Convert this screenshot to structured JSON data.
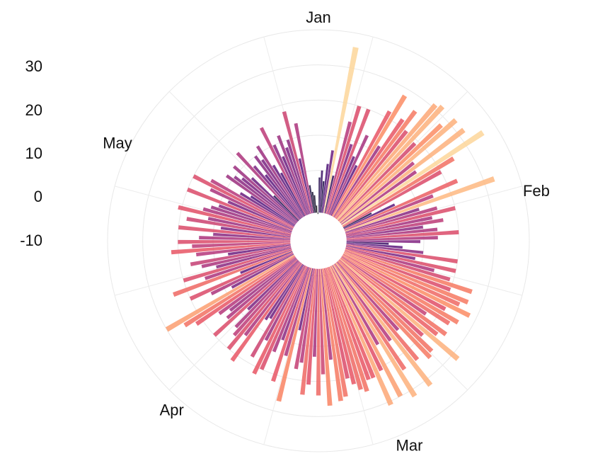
{
  "chart_data": {
    "type": "bar",
    "subtype": "radial-bar",
    "title": "",
    "xlabel": "",
    "ylabel": "",
    "ylim": [
      -20,
      40
    ],
    "grid": true,
    "legend": "none",
    "colormap": "magma",
    "color_domain": [
      -10,
      40
    ],
    "y_ticks": [
      {
        "value": 30,
        "label": "30"
      },
      {
        "value": 20,
        "label": "20"
      },
      {
        "value": 10,
        "label": "10"
      },
      {
        "value": 0,
        "label": "0"
      },
      {
        "value": -10,
        "label": "-10"
      }
    ],
    "month_labels": [
      {
        "label": "Jan",
        "angle_deg": 0
      },
      {
        "label": "Feb",
        "angle_deg": 77
      },
      {
        "label": "Mar",
        "angle_deg": 156
      },
      {
        "label": "Apr",
        "angle_deg": 221
      },
      {
        "label": "May",
        "angle_deg": 296
      }
    ],
    "series": [
      {
        "values": [
          -2,
          0,
          -3,
          2,
          6,
          36,
          -1,
          15,
          20,
          9,
          20,
          6,
          13,
          4,
          22,
          28,
          12,
          22,
          26,
          20,
          31,
          32,
          19,
          28,
          32,
          15,
          32,
          14,
          36,
          25,
          20,
          -3,
          4,
          23,
          15,
          33,
          10,
          15,
          20,
          13,
          16,
          10,
          14,
          20,
          14,
          9,
          0,
          4,
          10,
          20,
          8,
          20,
          14,
          19,
          26,
          20,
          26,
          24,
          28,
          21,
          26,
          24,
          17,
          25,
          23,
          32,
          20,
          25,
          26,
          14,
          24,
          32,
          15,
          24,
          32,
          14,
          30,
          21,
          31,
          22,
          22,
          25,
          24,
          22,
          20,
          25,
          26,
          14,
          27,
          18,
          24,
          13,
          21,
          24,
          15,
          17,
          6,
          27,
          14,
          22,
          10,
          14,
          20,
          22,
          12,
          18,
          6,
          7,
          22,
          14,
          20,
          16,
          14,
          8,
          20,
          14,
          12,
          15,
          22,
          25,
          30,
          8,
          14,
          20,
          4,
          24,
          14,
          20,
          10,
          14,
          17,
          6,
          15,
          22,
          16,
          20,
          14,
          10,
          20,
          8,
          18,
          12,
          21,
          14,
          12,
          10,
          20,
          8,
          14,
          20,
          15,
          6,
          3,
          12,
          10,
          8,
          12,
          6,
          -2,
          14,
          8,
          4,
          10,
          8,
          12,
          5,
          2,
          16,
          10,
          6,
          12,
          8,
          10,
          18,
          4,
          14,
          -4,
          -6,
          -7,
          -10,
          -12
        ]
      }
    ]
  }
}
